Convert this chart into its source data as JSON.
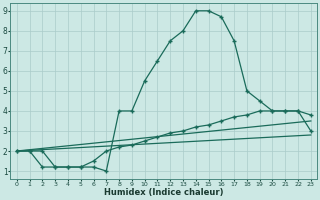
{
  "xlabel": "Humidex (Indice chaleur)",
  "xlim": [
    -0.5,
    23.5
  ],
  "ylim": [
    0.6,
    9.4
  ],
  "xticks": [
    0,
    1,
    2,
    3,
    4,
    5,
    6,
    7,
    8,
    9,
    10,
    11,
    12,
    13,
    14,
    15,
    16,
    17,
    18,
    19,
    20,
    21,
    22,
    23
  ],
  "yticks": [
    1,
    2,
    3,
    4,
    5,
    6,
    7,
    8,
    9
  ],
  "bg_color": "#cce8e4",
  "grid_color": "#aaccca",
  "line_color": "#1a6b5a",
  "series": [
    {
      "x": [
        0,
        1,
        2,
        3,
        4,
        5,
        6,
        7,
        8,
        9,
        10,
        11,
        12,
        13,
        14,
        15,
        16,
        17,
        18,
        19,
        20,
        21,
        22,
        23
      ],
      "y": [
        2.0,
        2.0,
        2.0,
        1.2,
        1.2,
        1.2,
        1.2,
        1.0,
        4.0,
        4.0,
        5.5,
        6.5,
        7.5,
        8.0,
        9.0,
        9.0,
        8.7,
        7.5,
        5.0,
        4.5,
        4.0,
        4.0,
        4.0,
        3.0
      ],
      "marker": true
    },
    {
      "x": [
        0,
        1,
        2,
        3,
        4,
        5,
        6,
        7,
        8,
        9,
        10,
        11,
        12,
        13,
        14,
        15,
        16,
        17,
        18,
        19,
        20,
        21,
        22,
        23
      ],
      "y": [
        2.0,
        2.0,
        1.2,
        1.2,
        1.2,
        1.2,
        1.5,
        2.0,
        2.2,
        2.3,
        2.5,
        2.7,
        2.9,
        3.0,
        3.2,
        3.3,
        3.5,
        3.7,
        3.8,
        4.0,
        4.0,
        4.0,
        4.0,
        3.8
      ],
      "marker": true
    },
    {
      "x": [
        0,
        23
      ],
      "y": [
        2.0,
        3.5
      ],
      "marker": false
    },
    {
      "x": [
        0,
        23
      ],
      "y": [
        2.0,
        2.8
      ],
      "marker": false
    }
  ]
}
